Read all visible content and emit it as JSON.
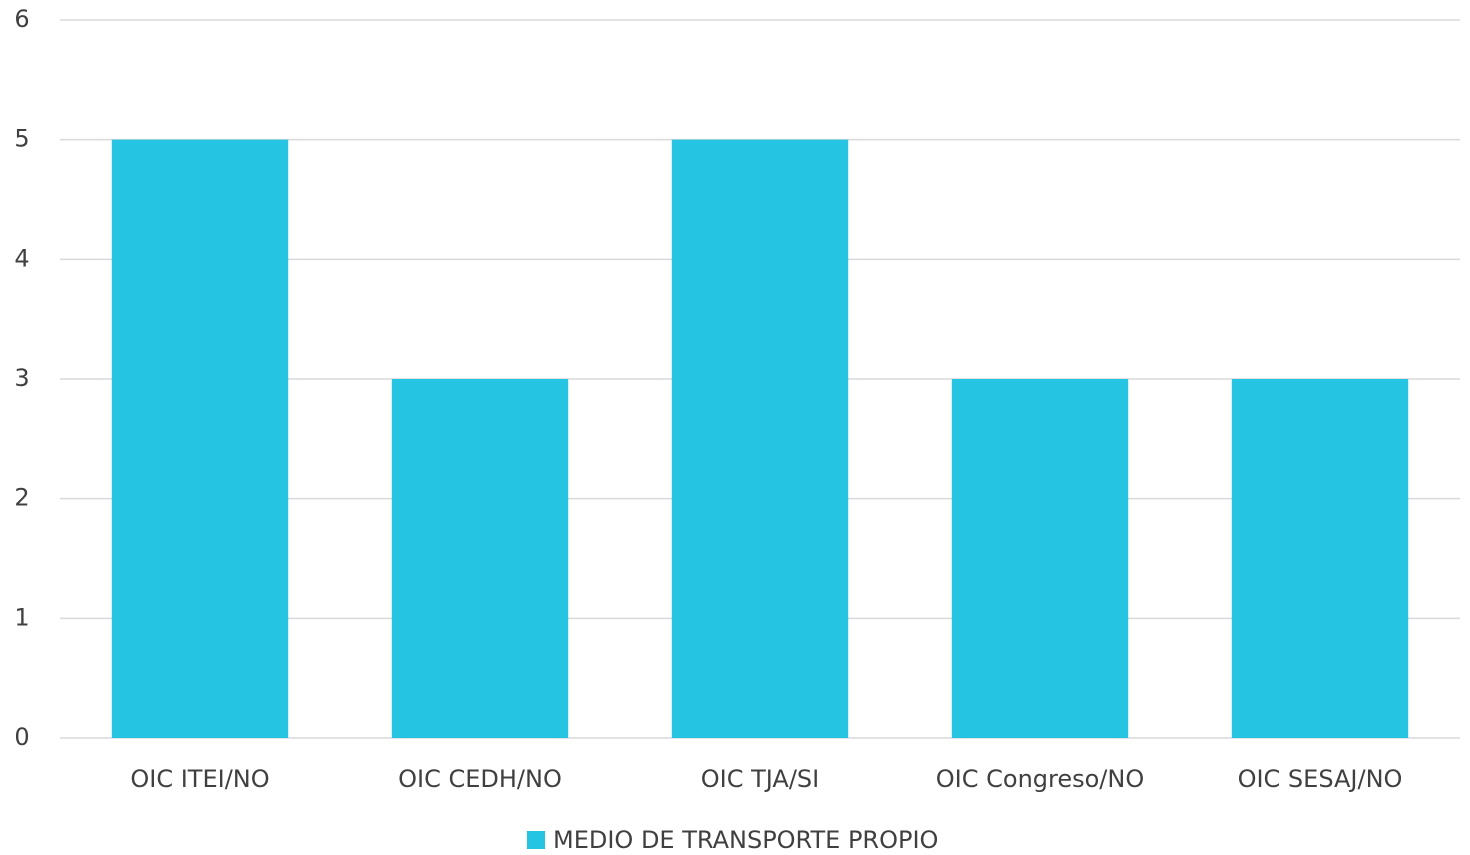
{
  "chart_data": {
    "type": "bar",
    "categories": [
      "OIC ITEI/NO",
      "OIC CEDH/NO",
      "OIC TJA/SI",
      "OIC Congreso/NO",
      "OIC SESAJ/NO"
    ],
    "series": [
      {
        "name": "MEDIO DE TRANSPORTE PROPIO",
        "color": "#25c4e2",
        "values": [
          5,
          3,
          5,
          3,
          3
        ]
      }
    ],
    "ylim": [
      0,
      6
    ],
    "yticks": [
      0,
      1,
      2,
      3,
      4,
      5,
      6
    ],
    "grid": true,
    "legend": "bottom"
  }
}
